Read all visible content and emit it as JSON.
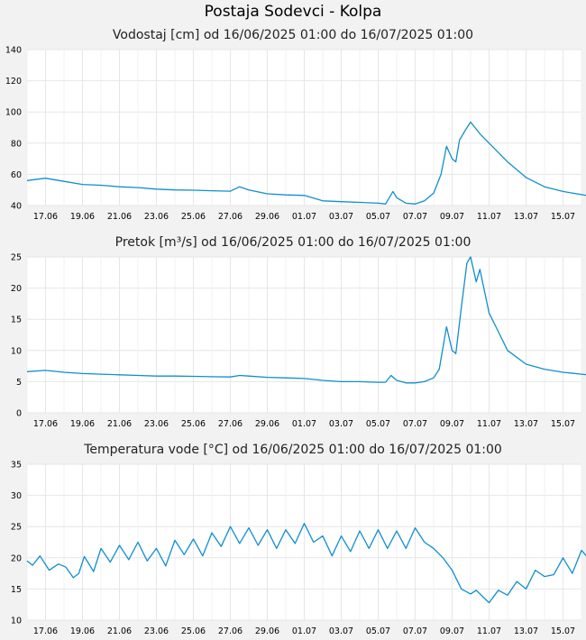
{
  "page": {
    "title": "Postaja Sodevci - Kolpa"
  },
  "charts": {
    "level": {
      "title": "Vodostaj [cm] od 16/06/2025 01:00 do 16/07/2025 01:00"
    },
    "flow": {
      "title": "Pretok [m³/s] od 16/06/2025 01:00 do 16/07/2025 01:00"
    },
    "temp": {
      "title": "Temperatura vode [°C] od 16/06/2025 01:00 do 16/07/2025 01:00"
    }
  },
  "colors": {
    "line": "#0f8fce",
    "grid": "#e6e6e6",
    "plot_bg": "#ffffff",
    "page_bg": "#f2f2f2"
  },
  "chart_data": [
    {
      "type": "line",
      "title": "Vodostaj [cm] od 16/06/2025 01:00 do 16/07/2025 01:00",
      "xlabel": "",
      "ylabel": "",
      "xlim": [
        "16.06",
        "16.07"
      ],
      "ylim": [
        40,
        140
      ],
      "yticks": [
        40,
        60,
        80,
        100,
        120,
        140
      ],
      "xticks": [
        "17.06",
        "19.06",
        "21.06",
        "23.06",
        "25.06",
        "27.06",
        "29.06",
        "01.07",
        "03.07",
        "05.07",
        "07.07",
        "09.07",
        "11.07",
        "13.07",
        "15.07"
      ],
      "grid": true,
      "series": [
        {
          "values": [
            [
              0,
              56
            ],
            [
              1,
              57.5
            ],
            [
              2,
              55.5
            ],
            [
              3,
              53.5
            ],
            [
              4,
              53
            ],
            [
              5,
              52
            ],
            [
              6,
              51.5
            ],
            [
              7,
              50.5
            ],
            [
              8,
              50
            ],
            [
              9,
              49.8
            ],
            [
              10,
              49.5
            ],
            [
              11,
              49.2
            ],
            [
              11.5,
              52
            ],
            [
              12,
              50
            ],
            [
              13,
              47.5
            ],
            [
              14,
              46.8
            ],
            [
              15,
              46.5
            ],
            [
              16,
              43
            ],
            [
              17,
              42.5
            ],
            [
              18,
              42
            ],
            [
              19,
              41.5
            ],
            [
              19.4,
              41
            ],
            [
              19.6,
              45
            ],
            [
              19.8,
              49
            ],
            [
              20,
              45
            ],
            [
              20.5,
              41.5
            ],
            [
              21,
              41
            ],
            [
              21.5,
              43
            ],
            [
              22,
              48
            ],
            [
              22.4,
              60
            ],
            [
              22.7,
              78
            ],
            [
              23,
              70
            ],
            [
              23.2,
              68
            ],
            [
              23.4,
              82
            ],
            [
              23.7,
              88
            ],
            [
              24,
              93.5
            ],
            [
              24.5,
              86
            ],
            [
              25,
              80
            ],
            [
              26,
              68
            ],
            [
              27,
              58
            ],
            [
              28,
              52
            ],
            [
              29,
              49
            ],
            [
              30,
              47
            ],
            [
              31,
              45
            ],
            [
              32,
              44.5
            ]
          ]
        }
      ]
    },
    {
      "type": "line",
      "title": "Pretok [m³/s] od 16/06/2025 01:00 do 16/07/2025 01:00",
      "xlabel": "",
      "ylabel": "",
      "xlim": [
        "16.06",
        "16.07"
      ],
      "ylim": [
        0,
        25
      ],
      "yticks": [
        0,
        5,
        10,
        15,
        20,
        25
      ],
      "xticks": [
        "17.06",
        "19.06",
        "21.06",
        "23.06",
        "25.06",
        "27.06",
        "29.06",
        "01.07",
        "03.07",
        "05.07",
        "07.07",
        "09.07",
        "11.07",
        "13.07",
        "15.07"
      ],
      "grid": true,
      "series": [
        {
          "values": [
            [
              0,
              6.6
            ],
            [
              1,
              6.8
            ],
            [
              2,
              6.5
            ],
            [
              3,
              6.3
            ],
            [
              4,
              6.2
            ],
            [
              5,
              6.1
            ],
            [
              6,
              6
            ],
            [
              7,
              5.9
            ],
            [
              8,
              5.9
            ],
            [
              9,
              5.85
            ],
            [
              10,
              5.8
            ],
            [
              11,
              5.75
            ],
            [
              11.5,
              6
            ],
            [
              12,
              5.9
            ],
            [
              13,
              5.7
            ],
            [
              14,
              5.6
            ],
            [
              15,
              5.5
            ],
            [
              16,
              5.2
            ],
            [
              17,
              5
            ],
            [
              18,
              5
            ],
            [
              19,
              4.9
            ],
            [
              19.4,
              4.9
            ],
            [
              19.7,
              6
            ],
            [
              20,
              5.2
            ],
            [
              20.5,
              4.8
            ],
            [
              21,
              4.8
            ],
            [
              21.5,
              5
            ],
            [
              22,
              5.6
            ],
            [
              22.3,
              7
            ],
            [
              22.7,
              13.8
            ],
            [
              23,
              10
            ],
            [
              23.2,
              9.5
            ],
            [
              23.5,
              17
            ],
            [
              23.8,
              24
            ],
            [
              24,
              25
            ],
            [
              24.3,
              21
            ],
            [
              24.5,
              23
            ],
            [
              25,
              16
            ],
            [
              25.5,
              13
            ],
            [
              26,
              10
            ],
            [
              27,
              7.8
            ],
            [
              28,
              7
            ],
            [
              29,
              6.5
            ],
            [
              30,
              6.2
            ],
            [
              31,
              5.9
            ],
            [
              32,
              5.7
            ]
          ]
        }
      ]
    },
    {
      "type": "line",
      "title": "Temperatura vode [°C] od 16/06/2025 01:00 do 16/07/2025 01:00",
      "xlabel": "",
      "ylabel": "",
      "xlim": [
        "16.06",
        "16.07"
      ],
      "ylim": [
        10,
        35
      ],
      "yticks": [
        10,
        15,
        20,
        25,
        30,
        35
      ],
      "xticks": [
        "17.06",
        "19.06",
        "21.06",
        "23.06",
        "25.06",
        "27.06",
        "29.06",
        "01.07",
        "03.07",
        "05.07",
        "07.07",
        "09.07",
        "11.07",
        "13.07",
        "15.07"
      ],
      "grid": true,
      "series": [
        {
          "values": [
            [
              0,
              19.5
            ],
            [
              0.3,
              18.8
            ],
            [
              0.7,
              20.3
            ],
            [
              1.2,
              18
            ],
            [
              1.7,
              19
            ],
            [
              2.1,
              18.5
            ],
            [
              2.5,
              16.8
            ],
            [
              2.8,
              17.5
            ],
            [
              3.1,
              20.2
            ],
            [
              3.6,
              17.8
            ],
            [
              4,
              21.5
            ],
            [
              4.5,
              19.3
            ],
            [
              5,
              22
            ],
            [
              5.5,
              19.7
            ],
            [
              6,
              22.5
            ],
            [
              6.5,
              19.5
            ],
            [
              7,
              21.5
            ],
            [
              7.5,
              18.7
            ],
            [
              8,
              22.8
            ],
            [
              8.5,
              20.5
            ],
            [
              9,
              23
            ],
            [
              9.5,
              20.3
            ],
            [
              10,
              24
            ],
            [
              10.5,
              21.8
            ],
            [
              11,
              25
            ],
            [
              11.5,
              22.3
            ],
            [
              12,
              24.8
            ],
            [
              12.5,
              22
            ],
            [
              13,
              24.5
            ],
            [
              13.5,
              21.5
            ],
            [
              14,
              24.5
            ],
            [
              14.5,
              22.3
            ],
            [
              15,
              25.5
            ],
            [
              15.5,
              22.5
            ],
            [
              16,
              23.5
            ],
            [
              16.5,
              20.3
            ],
            [
              17,
              23.5
            ],
            [
              17.5,
              21
            ],
            [
              18,
              24.3
            ],
            [
              18.5,
              21.5
            ],
            [
              19,
              24.5
            ],
            [
              19.5,
              21.5
            ],
            [
              20,
              24.3
            ],
            [
              20.5,
              21.5
            ],
            [
              21,
              24.8
            ],
            [
              21.5,
              22.5
            ],
            [
              22,
              21.5
            ],
            [
              22.5,
              20
            ],
            [
              23,
              18
            ],
            [
              23.5,
              15
            ],
            [
              24,
              14.2
            ],
            [
              24.3,
              14.8
            ],
            [
              25,
              12.8
            ],
            [
              25.5,
              14.8
            ],
            [
              26,
              14
            ],
            [
              26.5,
              16.2
            ],
            [
              27,
              15
            ],
            [
              27.5,
              18
            ],
            [
              28,
              17
            ],
            [
              28.5,
              17.3
            ],
            [
              29,
              20
            ],
            [
              29.5,
              17.5
            ],
            [
              30,
              21.2
            ],
            [
              30.5,
              19.5
            ],
            [
              31,
              18.8
            ],
            [
              31.5,
              22.8
            ],
            [
              32,
              21
            ]
          ]
        }
      ]
    }
  ]
}
